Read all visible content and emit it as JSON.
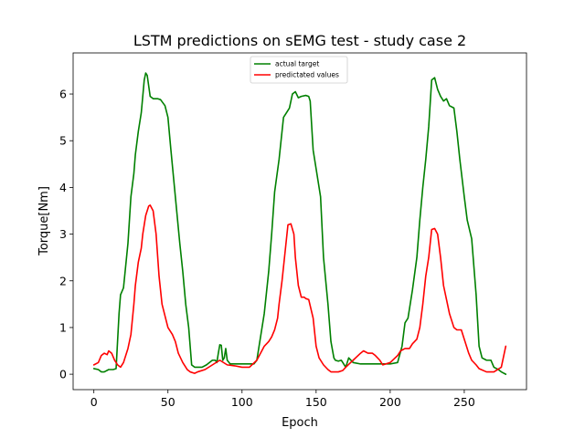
{
  "chart_data": {
    "type": "line",
    "title": "LSTM predictions on sEMG test - study case 2",
    "xlabel": "Epoch",
    "ylabel": "Torque[Nm]",
    "xlim": [
      -14,
      292
    ],
    "ylim": [
      -0.33,
      6.88
    ],
    "xticks": [
      0,
      50,
      100,
      150,
      200,
      250
    ],
    "yticks": [
      0,
      1,
      2,
      3,
      4,
      5,
      6
    ],
    "grid": false,
    "legend_position": "upper-center",
    "series": [
      {
        "name": "actual target",
        "color": "#008000",
        "x": [
          0,
          3,
          5,
          7,
          10,
          13,
          15,
          17,
          18,
          20,
          23,
          25,
          27,
          28,
          30,
          32,
          34,
          35,
          36,
          38,
          40,
          43,
          45,
          48,
          50,
          52,
          55,
          58,
          60,
          62,
          64,
          66,
          68,
          70,
          73,
          76,
          80,
          82,
          83,
          84,
          85,
          86,
          87,
          88,
          89,
          90,
          92,
          95,
          100,
          105,
          108,
          110,
          112,
          115,
          118,
          120,
          122,
          125,
          128,
          130,
          132,
          134,
          136,
          138,
          140,
          143,
          145,
          146,
          148,
          150,
          153,
          155,
          158,
          160,
          162,
          163,
          165,
          167,
          168,
          170,
          172,
          175,
          180,
          185,
          190,
          195,
          200,
          205,
          208,
          210,
          212,
          215,
          218,
          220,
          222,
          224,
          226,
          227,
          228,
          230,
          232,
          234,
          236,
          238,
          240,
          243,
          245,
          247,
          250,
          252,
          255,
          258,
          260,
          262,
          265,
          268,
          270,
          273,
          275,
          278
        ],
        "y": [
          0.12,
          0.1,
          0.05,
          0.05,
          0.1,
          0.1,
          0.12,
          1.3,
          1.7,
          1.85,
          2.8,
          3.8,
          4.3,
          4.7,
          5.2,
          5.6,
          6.3,
          6.45,
          6.4,
          5.95,
          5.9,
          5.9,
          5.88,
          5.75,
          5.5,
          4.8,
          3.8,
          2.8,
          2.2,
          1.5,
          1.0,
          0.2,
          0.15,
          0.15,
          0.15,
          0.2,
          0.3,
          0.3,
          0.25,
          0.45,
          0.63,
          0.62,
          0.3,
          0.35,
          0.55,
          0.3,
          0.22,
          0.22,
          0.22,
          0.22,
          0.22,
          0.3,
          0.7,
          1.3,
          2.2,
          3.0,
          3.9,
          4.6,
          5.5,
          5.6,
          5.7,
          6.0,
          6.05,
          5.92,
          5.95,
          5.97,
          5.95,
          5.85,
          4.8,
          4.4,
          3.8,
          2.5,
          1.5,
          0.7,
          0.35,
          0.3,
          0.28,
          0.3,
          0.25,
          0.15,
          0.35,
          0.25,
          0.22,
          0.22,
          0.22,
          0.22,
          0.22,
          0.25,
          0.6,
          1.1,
          1.2,
          1.8,
          2.5,
          3.3,
          4.0,
          4.6,
          5.3,
          5.8,
          6.3,
          6.35,
          6.1,
          5.95,
          5.85,
          5.9,
          5.75,
          5.7,
          5.2,
          4.6,
          3.8,
          3.3,
          2.9,
          1.7,
          0.6,
          0.35,
          0.3,
          0.3,
          0.15,
          0.1,
          0.05,
          0.0
        ]
      },
      {
        "name": "predictated values",
        "color": "#ff0000",
        "x": [
          0,
          3,
          5,
          7,
          9,
          10,
          12,
          14,
          16,
          18,
          20,
          23,
          25,
          27,
          28,
          30,
          32,
          33,
          35,
          37,
          38,
          40,
          42,
          44,
          46,
          48,
          50,
          53,
          55,
          57,
          60,
          63,
          65,
          68,
          70,
          75,
          80,
          85,
          90,
          95,
          100,
          105,
          110,
          115,
          118,
          120,
          122,
          124,
          125,
          127,
          129,
          131,
          133,
          135,
          136,
          138,
          140,
          142,
          143,
          145,
          148,
          150,
          152,
          155,
          158,
          160,
          163,
          165,
          168,
          170,
          175,
          180,
          182,
          185,
          188,
          190,
          193,
          195,
          200,
          205,
          207,
          210,
          213,
          215,
          218,
          220,
          222,
          224,
          226,
          227,
          228,
          230,
          232,
          234,
          236,
          238,
          240,
          243,
          245,
          248,
          250,
          253,
          255,
          258,
          260,
          265,
          270,
          275,
          278
        ],
        "y": [
          0.2,
          0.25,
          0.4,
          0.45,
          0.42,
          0.5,
          0.45,
          0.3,
          0.2,
          0.15,
          0.25,
          0.55,
          0.85,
          1.5,
          1.9,
          2.4,
          2.7,
          3.0,
          3.4,
          3.6,
          3.62,
          3.5,
          3.0,
          2.1,
          1.5,
          1.25,
          1.0,
          0.85,
          0.7,
          0.45,
          0.25,
          0.1,
          0.05,
          0.02,
          0.05,
          0.1,
          0.2,
          0.3,
          0.2,
          0.18,
          0.15,
          0.15,
          0.3,
          0.6,
          0.7,
          0.8,
          0.95,
          1.2,
          1.5,
          2.0,
          2.6,
          3.2,
          3.22,
          3.0,
          2.5,
          1.9,
          1.65,
          1.65,
          1.62,
          1.6,
          1.2,
          0.6,
          0.35,
          0.2,
          0.1,
          0.05,
          0.05,
          0.05,
          0.08,
          0.15,
          0.3,
          0.45,
          0.5,
          0.45,
          0.45,
          0.4,
          0.3,
          0.2,
          0.25,
          0.4,
          0.5,
          0.55,
          0.55,
          0.65,
          0.75,
          1.0,
          1.5,
          2.1,
          2.5,
          2.8,
          3.1,
          3.12,
          3.0,
          2.5,
          1.9,
          1.6,
          1.3,
          1.0,
          0.95,
          0.95,
          0.75,
          0.45,
          0.3,
          0.2,
          0.12,
          0.05,
          0.05,
          0.15,
          0.6
        ]
      }
    ]
  }
}
